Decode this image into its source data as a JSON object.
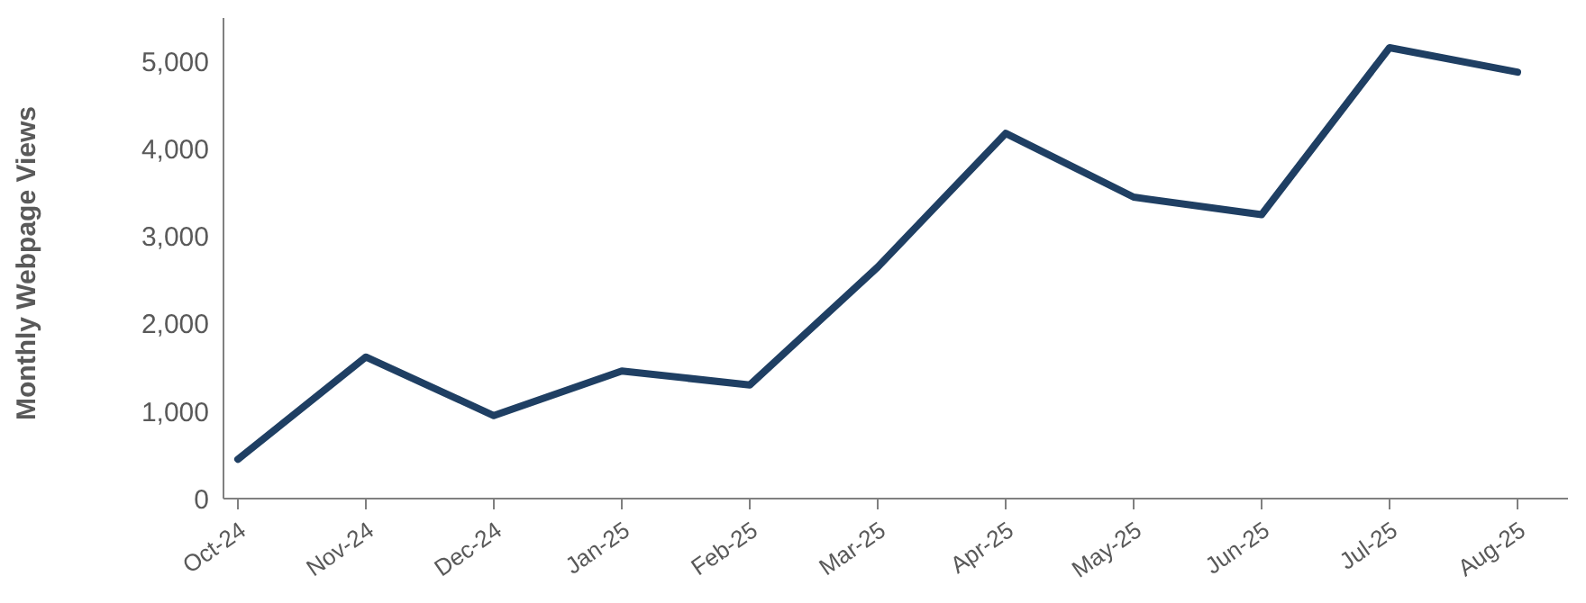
{
  "chart_data": {
    "type": "line",
    "ylabel": "Monthly Webpage Views",
    "categories": [
      "Oct-24",
      "Nov-24",
      "Dec-24",
      "Jan-25",
      "Feb-25",
      "Mar-25",
      "Apr-25",
      "May-25",
      "Jun-25",
      "Jul-25",
      "Aug-25"
    ],
    "series": [
      {
        "color": "#1f3f63",
        "values": [
          450,
          1620,
          950,
          1460,
          1300,
          2650,
          4180,
          3450,
          3250,
          5160,
          4880
        ]
      }
    ],
    "ylim": [
      0,
      5500
    ],
    "yticks": [
      {
        "value": 0,
        "label": "0"
      },
      {
        "value": 1000,
        "label": "1,000"
      },
      {
        "value": 2000,
        "label": "2,000"
      },
      {
        "value": 3000,
        "label": "3,000"
      },
      {
        "value": 4000,
        "label": "4,000"
      },
      {
        "value": 5000,
        "label": "5,000"
      }
    ],
    "grid": false,
    "legend": false,
    "marker": "none",
    "line_style": "solid"
  }
}
